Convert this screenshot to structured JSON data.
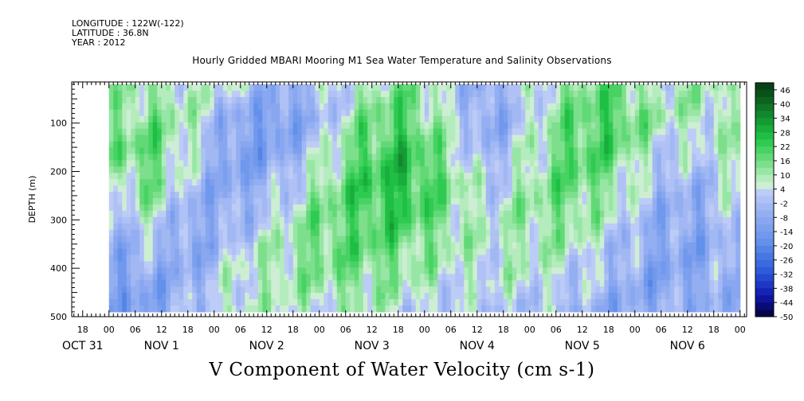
{
  "header": {
    "longitude": "LONGITUDE : 122W(-122)",
    "latitude": "LATITUDE : 36.8N",
    "year": "YEAR : 2012",
    "title": "Hourly Gridded MBARI Mooring M1 Sea Water Temperature and Salinity Observations"
  },
  "chart_data": {
    "type": "heatmap",
    "title": "Hourly Gridded MBARI Mooring M1 Sea Water Temperature and Salinity Observations",
    "variable_title": "V Component of Water Velocity (cm s-1)",
    "xlabel": "",
    "ylabel": "DEPTH (m)",
    "ylim": [
      500,
      0
    ],
    "y_ticks": [
      100,
      200,
      300,
      400,
      500
    ],
    "x_ticks": [
      {
        "hour": "18",
        "t": -6
      },
      {
        "hour": "00",
        "t": 0
      },
      {
        "hour": "06",
        "t": 6
      },
      {
        "hour": "12",
        "t": 12
      },
      {
        "hour": "18",
        "t": 18
      },
      {
        "hour": "00",
        "t": 24
      },
      {
        "hour": "06",
        "t": 30
      },
      {
        "hour": "12",
        "t": 36
      },
      {
        "hour": "18",
        "t": 42
      },
      {
        "hour": "00",
        "t": 48
      },
      {
        "hour": "06",
        "t": 54
      },
      {
        "hour": "12",
        "t": 60
      },
      {
        "hour": "18",
        "t": 66
      },
      {
        "hour": "00",
        "t": 72
      },
      {
        "hour": "06",
        "t": 78
      },
      {
        "hour": "12",
        "t": 84
      },
      {
        "hour": "18",
        "t": 90
      },
      {
        "hour": "00",
        "t": 96
      },
      {
        "hour": "06",
        "t": 102
      },
      {
        "hour": "12",
        "t": 108
      },
      {
        "hour": "18",
        "t": 114
      },
      {
        "hour": "00",
        "t": 120
      },
      {
        "hour": "06",
        "t": 126
      },
      {
        "hour": "12",
        "t": 132
      },
      {
        "hour": "18",
        "t": 138
      },
      {
        "hour": "00",
        "t": 144
      }
    ],
    "day_labels": [
      {
        "label": "OCT 31",
        "t": -6
      },
      {
        "label": "NOV  1",
        "t": 12
      },
      {
        "label": "NOV  2",
        "t": 36
      },
      {
        "label": "NOV  3",
        "t": 60
      },
      {
        "label": "NOV  4",
        "t": 84
      },
      {
        "label": "NOV  5",
        "t": 108
      },
      {
        "label": "NOV  6",
        "t": 132
      }
    ],
    "xlim": [
      -8.5,
      145.5
    ],
    "data_xlim": [
      0,
      144
    ],
    "data_ylim": [
      20,
      490
    ],
    "colorbar": {
      "labels": [
        "46",
        "40",
        "34",
        "28",
        "22",
        "16",
        "10",
        "4",
        "-2",
        "-8",
        "-14",
        "-20",
        "-26",
        "-32",
        "-38",
        "-44",
        "-50"
      ],
      "levels": [
        -50,
        -47,
        -44,
        -41,
        -38,
        -35,
        -32,
        -29,
        -26,
        -23,
        -20,
        -17,
        -14,
        -11,
        -8,
        -5,
        -2,
        1,
        4,
        7,
        10,
        13,
        16,
        19,
        22,
        25,
        28,
        31,
        34,
        37,
        40,
        43,
        46,
        49
      ],
      "colors": [
        "#05054f",
        "#0a0a78",
        "#0f159a",
        "#1424b4",
        "#1c38c4",
        "#2549cf",
        "#2f5bd8",
        "#3a6ade",
        "#4777e2",
        "#5583e6",
        "#6390ea",
        "#7098ec",
        "#7c9fee",
        "#88a7f0",
        "#94aff1",
        "#a1b8f3",
        "#afc1f5",
        "#bcccf7",
        "#cdeed3",
        "#b4ecbd",
        "#98e6a5",
        "#7ddf8c",
        "#62d977",
        "#48d263",
        "#2fca51",
        "#1fbe44",
        "#19ad3c",
        "#159a34",
        "#11882d",
        "#0e7526",
        "#0b6320",
        "#08521a",
        "#064215"
      ]
    },
    "field_pattern": [
      [
        8,
        10,
        6,
        4,
        -6,
        -2,
        8,
        14,
        4,
        -8,
        4,
        12,
        16,
        6,
        10,
        4
      ],
      [
        10,
        14,
        8,
        -8,
        -14,
        -4,
        12,
        20,
        6,
        -10,
        2,
        16,
        22,
        10,
        8,
        6
      ],
      [
        14,
        18,
        4,
        -12,
        -10,
        2,
        18,
        24,
        12,
        -6,
        6,
        20,
        18,
        4,
        2,
        10
      ],
      [
        6,
        16,
        -2,
        -10,
        -4,
        10,
        22,
        26,
        16,
        0,
        10,
        18,
        12,
        -2,
        -4,
        8
      ],
      [
        -4,
        8,
        -8,
        -6,
        4,
        14,
        20,
        22,
        14,
        4,
        12,
        14,
        6,
        -6,
        -8,
        4
      ],
      [
        -8,
        -2,
        -10,
        2,
        8,
        16,
        18,
        16,
        10,
        6,
        10,
        8,
        0,
        -8,
        -10,
        0
      ],
      [
        -12,
        -8,
        -6,
        6,
        10,
        12,
        14,
        10,
        6,
        4,
        6,
        2,
        -4,
        -10,
        -8,
        -4
      ],
      [
        -10,
        -12,
        -2,
        8,
        6,
        6,
        8,
        4,
        0,
        0,
        0,
        -4,
        -8,
        -8,
        -4,
        -8
      ]
    ]
  },
  "colors": {
    "background": "#ffffff",
    "missing": "#ffffff"
  }
}
